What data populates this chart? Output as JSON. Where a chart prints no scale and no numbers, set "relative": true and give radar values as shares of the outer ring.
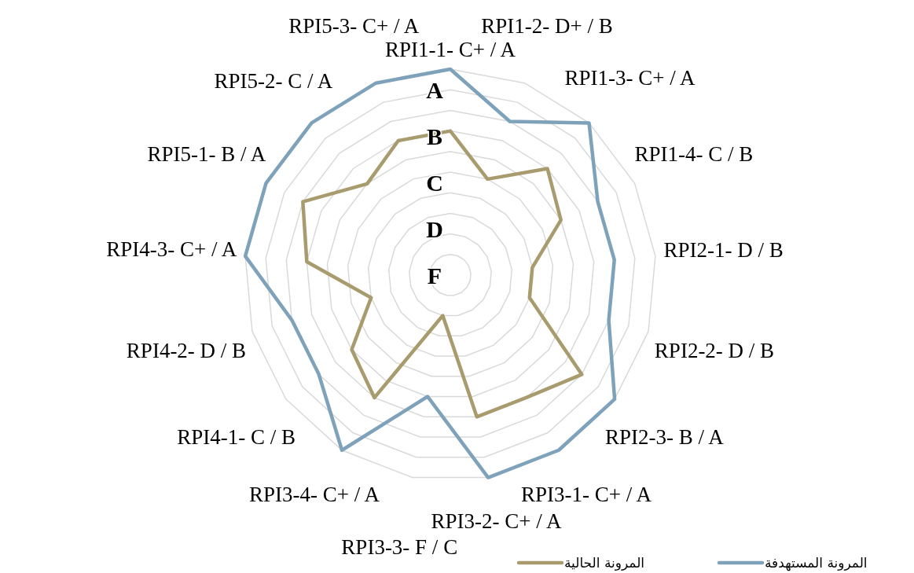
{
  "chart_data": {
    "type": "radar",
    "relative": true,
    "categories": [
      "RPI1-1- C+ / A",
      "RPI1-2- D+ / B",
      "RPI1-3- C+ / A",
      "RPI1-4- C / B",
      "RPI2-1- D / B",
      "RPI2-2- D / B",
      "RPI2-3- B / A",
      "RPI3-1- C+ / A",
      "RPI3-2- C+ / A",
      "RPI3-3- F / C",
      "RPI3-4- C+ / A",
      "RPI4-1- C / B",
      "RPI4-2- D / B",
      "RPI4-3- C+ / A",
      "RPI5-1- B / A",
      "RPI5-2- C / A",
      "RPI5-3- C+ / A"
    ],
    "series": [
      {
        "name": "المرونة الحالية",
        "color": "#a89c6e",
        "values": [
          0.7,
          0.5,
          0.7,
          0.6,
          0.4,
          0.4,
          0.8,
          0.7,
          0.7,
          0.2,
          0.7,
          0.6,
          0.4,
          0.7,
          0.8,
          0.6,
          0.7
        ]
      },
      {
        "name": "المرونة المستهدفة",
        "color": "#7fa2bb",
        "values": [
          1,
          0.8,
          1,
          0.8,
          0.8,
          0.8,
          1,
          1,
          1,
          0.6,
          1,
          0.8,
          0.8,
          1,
          1,
          1,
          1
        ]
      }
    ],
    "annotations": [
      "A",
      "B",
      "C",
      "D",
      "F"
    ],
    "grid": true,
    "legend": "bottom"
  }
}
